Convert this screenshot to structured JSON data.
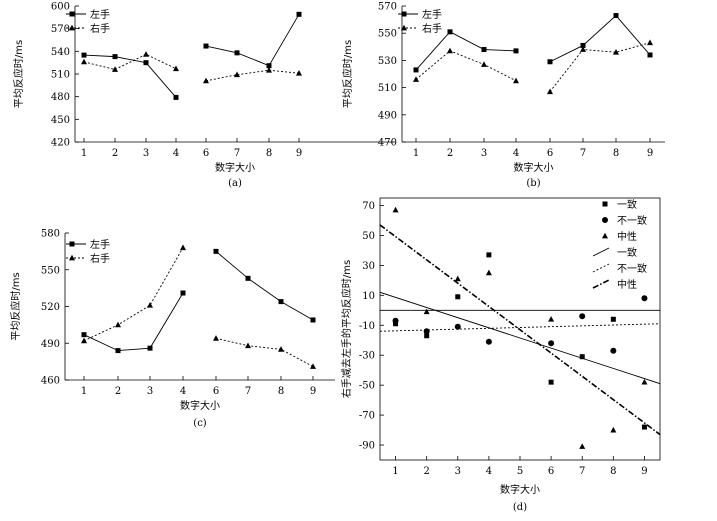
{
  "chart_data": [
    {
      "type": "line",
      "caption": "(a)",
      "xlabel": "数字大小",
      "ylabel": "平均反应时/ms",
      "x_ticks": [
        "1",
        "2",
        "3",
        "4",
        "6",
        "7",
        "8",
        "9"
      ],
      "y_ticks": [
        "420",
        "450",
        "480",
        "510",
        "540",
        "570",
        "600"
      ],
      "ylim": [
        420,
        600
      ],
      "series": [
        {
          "name": "左手",
          "marker": "square",
          "dash": "solid",
          "segments": [
            [
              [
                1,
                535
              ],
              [
                2,
                533
              ],
              [
                3,
                525
              ],
              [
                4,
                479
              ]
            ],
            [
              [
                6,
                547
              ],
              [
                7,
                538
              ],
              [
                8,
                521
              ],
              [
                9,
                589
              ]
            ]
          ]
        },
        {
          "name": "右手",
          "marker": "triangle",
          "dash": "dotted",
          "segments": [
            [
              [
                1,
                526
              ],
              [
                2,
                516
              ],
              [
                3,
                536
              ],
              [
                4,
                517
              ]
            ],
            [
              [
                6,
                501
              ],
              [
                7,
                509
              ],
              [
                8,
                515
              ],
              [
                9,
                511
              ]
            ]
          ]
        }
      ]
    },
    {
      "type": "line",
      "caption": "(b)",
      "xlabel": "数字大小",
      "ylabel": "平均反应时/ms",
      "x_ticks": [
        "1",
        "2",
        "3",
        "4",
        "6",
        "7",
        "8",
        "9"
      ],
      "y_ticks": [
        "470",
        "490",
        "510",
        "530",
        "550",
        "570"
      ],
      "ylim": [
        470,
        570
      ],
      "series": [
        {
          "name": "左手",
          "marker": "square",
          "dash": "solid",
          "segments": [
            [
              [
                1,
                523
              ],
              [
                2,
                551
              ],
              [
                3,
                538
              ],
              [
                4,
                537
              ]
            ],
            [
              [
                6,
                529
              ],
              [
                7,
                541
              ],
              [
                8,
                563
              ],
              [
                9,
                534
              ]
            ]
          ]
        },
        {
          "name": "右手",
          "marker": "triangle",
          "dash": "dotted",
          "segments": [
            [
              [
                1,
                516
              ],
              [
                2,
                537
              ],
              [
                3,
                527
              ],
              [
                4,
                515
              ]
            ],
            [
              [
                6,
                507
              ],
              [
                7,
                538
              ],
              [
                8,
                536
              ],
              [
                9,
                543
              ]
            ]
          ]
        }
      ]
    },
    {
      "type": "line",
      "caption": "(c)",
      "xlabel": "数字大小",
      "ylabel": "平均反应时/ms",
      "x_ticks": [
        "1",
        "2",
        "3",
        "4",
        "6",
        "7",
        "8",
        "9"
      ],
      "y_ticks": [
        "460",
        "490",
        "520",
        "550",
        "580"
      ],
      "ylim": [
        460,
        580
      ],
      "series": [
        {
          "name": "左手",
          "marker": "square",
          "dash": "solid",
          "segments": [
            [
              [
                1,
                497
              ],
              [
                2,
                484
              ],
              [
                3,
                486
              ],
              [
                4,
                531
              ]
            ],
            [
              [
                6,
                565
              ],
              [
                7,
                543
              ],
              [
                8,
                524
              ],
              [
                9,
                509
              ]
            ]
          ]
        },
        {
          "name": "右手",
          "marker": "triangle",
          "dash": "dotted",
          "segments": [
            [
              [
                1,
                492
              ],
              [
                2,
                505
              ],
              [
                3,
                521
              ],
              [
                4,
                568
              ]
            ],
            [
              [
                6,
                494
              ],
              [
                7,
                488
              ],
              [
                8,
                485
              ],
              [
                9,
                471
              ]
            ]
          ]
        }
      ]
    },
    {
      "type": "scatter",
      "caption": "(d)",
      "xlabel": "数字大小",
      "ylabel": "右手减去左手的平均反应时/ms",
      "x_ticks": [
        "1",
        "2",
        "3",
        "4",
        "5",
        "6",
        "7",
        "8",
        "9"
      ],
      "y_ticks": [
        "-90",
        "-70",
        "-50",
        "-30",
        "-10",
        "10",
        "30",
        "50",
        "70"
      ],
      "xlim": [
        0.5,
        9.5
      ],
      "ylim": [
        -100,
        75
      ],
      "series": [
        {
          "name": "一致",
          "marker": "square",
          "points": [
            [
              1,
              -9
            ],
            [
              2,
              -17
            ],
            [
              3,
              9
            ],
            [
              4,
              37
            ],
            [
              6,
              -48
            ],
            [
              7,
              -31
            ],
            [
              8,
              -6
            ],
            [
              9,
              -78
            ]
          ]
        },
        {
          "name": "不一致",
          "marker": "circle",
          "points": [
            [
              1,
              -7
            ],
            [
              2,
              -14
            ],
            [
              3,
              -11
            ],
            [
              4,
              -21
            ],
            [
              6,
              -22
            ],
            [
              7,
              -4
            ],
            [
              8,
              -27
            ],
            [
              9,
              8
            ]
          ]
        },
        {
          "name": "中性",
          "marker": "triangle",
          "points": [
            [
              1,
              67
            ],
            [
              2,
              -1
            ],
            [
              3,
              21
            ],
            [
              4,
              25
            ],
            [
              6,
              -6
            ],
            [
              7,
              -91
            ],
            [
              8,
              -80
            ],
            [
              9,
              -48
            ]
          ]
        }
      ],
      "trend_lines": [
        {
          "name": "一致",
          "dash": "solid",
          "from": [
            0.5,
            0
          ],
          "to": [
            9.5,
            0
          ]
        },
        {
          "name": "不一致",
          "dash": "dotted",
          "from": [
            0.5,
            -14
          ],
          "to": [
            9.5,
            -9
          ]
        },
        {
          "name": "中性",
          "dash": "dashdot",
          "from": [
            0.5,
            57
          ],
          "to": [
            9.5,
            -83
          ]
        },
        {
          "name": "",
          "dash": "solid",
          "from": [
            0.5,
            12
          ],
          "to": [
            9.5,
            -49
          ]
        }
      ]
    }
  ]
}
